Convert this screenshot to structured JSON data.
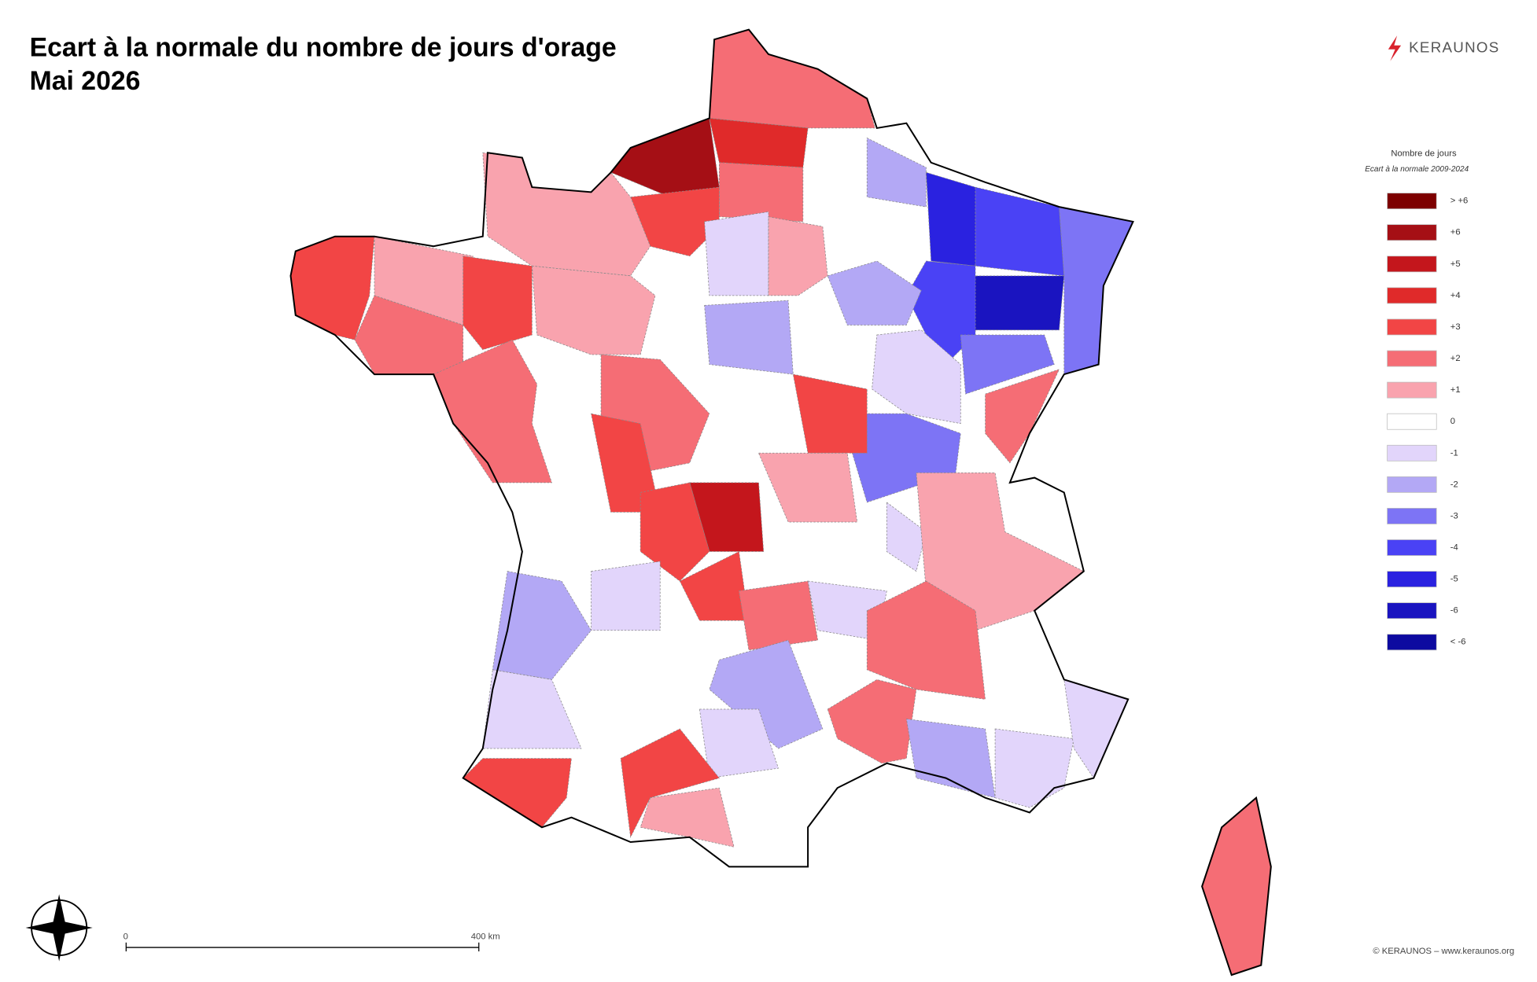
{
  "header": {
    "title": [
      "Ecart à la normale du nombre de jours d'orage",
      "Mai 2026"
    ],
    "logo": "KERAUNOS"
  },
  "legend": {
    "title": "Nombre de jours",
    "subtitle": "Ecart à la normale 2009-2024",
    "items": [
      {
        "label": "> +6",
        "color": "#7d0000"
      },
      {
        "label": "+6",
        "color": "#a50f15"
      },
      {
        "label": "+5",
        "color": "#c4161c"
      },
      {
        "label": "+4",
        "color": "#e02a2a"
      },
      {
        "label": "+3",
        "color": "#f24545"
      },
      {
        "label": "+2",
        "color": "#f56d75"
      },
      {
        "label": "+1",
        "color": "#f9a3ae"
      },
      {
        "label": "0",
        "color": "#ffffff"
      },
      {
        "label": "-1",
        "color": "#e2d5fb"
      },
      {
        "label": "-2",
        "color": "#b3a8f5"
      },
      {
        "label": "-3",
        "color": "#7d74f5"
      },
      {
        "label": "-4",
        "color": "#4a42f5"
      },
      {
        "label": "-5",
        "color": "#2a22e0"
      },
      {
        "label": "-6",
        "color": "#1a14c0"
      },
      {
        "label": "< -6",
        "color": "#0d0aa0"
      }
    ]
  },
  "scale": {
    "start": "0",
    "end": "400 km"
  },
  "credit": "© KERAUNOS – www.keraunos.org"
}
